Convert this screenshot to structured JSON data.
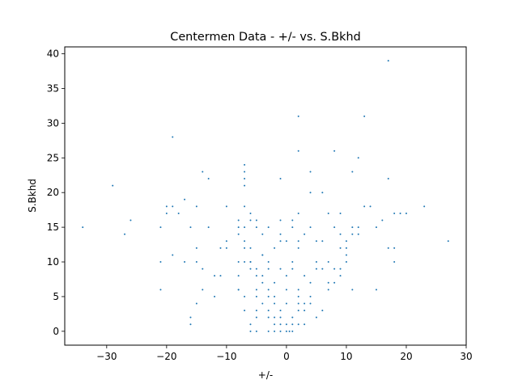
{
  "chart_data": {
    "type": "scatter",
    "title": "Centermen Data - +/- vs. S.Bkhd",
    "xlabel": "+/-",
    "ylabel": "S.Bkhd",
    "xlim": [
      -37,
      30
    ],
    "ylim": [
      -2,
      41
    ],
    "xticks": [
      -30,
      -20,
      -10,
      0,
      10,
      20,
      30
    ],
    "yticks": [
      0,
      5,
      10,
      15,
      20,
      25,
      30,
      35,
      40
    ],
    "xtick_labels": [
      "−30",
      "−20",
      "−10",
      "0",
      "10",
      "20",
      "30"
    ],
    "ytick_labels": [
      "0",
      "5",
      "10",
      "15",
      "20",
      "25",
      "30",
      "35",
      "40"
    ],
    "grid": false,
    "color": "#1f77b4",
    "series": [
      {
        "points": [
          [
            17,
            39
          ],
          [
            2,
            31
          ],
          [
            13,
            31
          ],
          [
            -19,
            28
          ],
          [
            2,
            26
          ],
          [
            8,
            26
          ],
          [
            12,
            25
          ],
          [
            -7,
            24
          ],
          [
            -14,
            23
          ],
          [
            -7,
            23
          ],
          [
            4,
            23
          ],
          [
            11,
            23
          ],
          [
            -13,
            22
          ],
          [
            -7,
            22
          ],
          [
            -1,
            22
          ],
          [
            17,
            22
          ],
          [
            -29,
            21
          ],
          [
            -7,
            21
          ],
          [
            4,
            20
          ],
          [
            6,
            20
          ],
          [
            -20,
            18
          ],
          [
            -19,
            18
          ],
          [
            -15,
            18
          ],
          [
            -10,
            18
          ],
          [
            -7,
            18
          ],
          [
            13,
            18
          ],
          [
            14,
            18
          ],
          [
            23,
            18
          ],
          [
            -20,
            17
          ],
          [
            -18,
            17
          ],
          [
            -6,
            17
          ],
          [
            2,
            17
          ],
          [
            7,
            17
          ],
          [
            9,
            17
          ],
          [
            18,
            17
          ],
          [
            19,
            17
          ],
          [
            20,
            17
          ],
          [
            -17,
            19
          ],
          [
            -26,
            16
          ],
          [
            -8,
            16
          ],
          [
            -6,
            16
          ],
          [
            -5,
            16
          ],
          [
            -1,
            16
          ],
          [
            1,
            16
          ],
          [
            16,
            16
          ],
          [
            -34,
            15
          ],
          [
            -21,
            15
          ],
          [
            -16,
            15
          ],
          [
            -13,
            15
          ],
          [
            -8,
            15
          ],
          [
            -7,
            15
          ],
          [
            -5,
            15
          ],
          [
            -3,
            15
          ],
          [
            1,
            15
          ],
          [
            4,
            15
          ],
          [
            8,
            15
          ],
          [
            11,
            15
          ],
          [
            12,
            15
          ],
          [
            15,
            15
          ],
          [
            -27,
            14
          ],
          [
            -8,
            14
          ],
          [
            -4,
            14
          ],
          [
            -1,
            14
          ],
          [
            3,
            14
          ],
          [
            9,
            14
          ],
          [
            11,
            14
          ],
          [
            12,
            14
          ],
          [
            -10,
            13
          ],
          [
            -7,
            13
          ],
          [
            -1,
            13
          ],
          [
            0,
            13
          ],
          [
            2,
            13
          ],
          [
            5,
            13
          ],
          [
            6,
            13
          ],
          [
            10,
            13
          ],
          [
            27,
            13
          ],
          [
            -15,
            12
          ],
          [
            -11,
            12
          ],
          [
            -10,
            12
          ],
          [
            -7,
            12
          ],
          [
            -6,
            12
          ],
          [
            -2,
            12
          ],
          [
            2,
            12
          ],
          [
            9,
            12
          ],
          [
            10,
            12
          ],
          [
            17,
            12
          ],
          [
            18,
            12
          ],
          [
            -19,
            11
          ],
          [
            -4,
            11
          ],
          [
            -4,
            11
          ],
          [
            10,
            11
          ],
          [
            -21,
            10
          ],
          [
            -17,
            10
          ],
          [
            -15,
            10
          ],
          [
            -8,
            10
          ],
          [
            -7,
            10
          ],
          [
            -6,
            10
          ],
          [
            -6,
            10
          ],
          [
            -3,
            10
          ],
          [
            1,
            10
          ],
          [
            5,
            10
          ],
          [
            7,
            10
          ],
          [
            10,
            10
          ],
          [
            18,
            10
          ],
          [
            -14,
            9
          ],
          [
            -6,
            9
          ],
          [
            -5,
            9
          ],
          [
            -3,
            9
          ],
          [
            -1,
            9
          ],
          [
            1,
            9
          ],
          [
            5,
            9
          ],
          [
            6,
            9
          ],
          [
            8,
            9
          ],
          [
            9,
            9
          ],
          [
            -12,
            8
          ],
          [
            -11,
            8
          ],
          [
            -8,
            8
          ],
          [
            -5,
            8
          ],
          [
            -4,
            8
          ],
          [
            0,
            8
          ],
          [
            3,
            8
          ],
          [
            9,
            8
          ],
          [
            -4,
            7
          ],
          [
            -2,
            7
          ],
          [
            4,
            7
          ],
          [
            7,
            7
          ],
          [
            8,
            7
          ],
          [
            -21,
            6
          ],
          [
            -14,
            6
          ],
          [
            -8,
            6
          ],
          [
            -8,
            6
          ],
          [
            -5,
            6
          ],
          [
            -3,
            6
          ],
          [
            0,
            6
          ],
          [
            2,
            6
          ],
          [
            7,
            6
          ],
          [
            11,
            6
          ],
          [
            15,
            6
          ],
          [
            -12,
            5
          ],
          [
            -7,
            5
          ],
          [
            -5,
            5
          ],
          [
            -3,
            5
          ],
          [
            -2,
            5
          ],
          [
            2,
            5
          ],
          [
            4,
            5
          ],
          [
            -15,
            4
          ],
          [
            -4,
            4
          ],
          [
            -2,
            4
          ],
          [
            0,
            4
          ],
          [
            2,
            4
          ],
          [
            3,
            4
          ],
          [
            4,
            4
          ],
          [
            -7,
            3
          ],
          [
            -5,
            3
          ],
          [
            -3,
            3
          ],
          [
            -1,
            3
          ],
          [
            2,
            3
          ],
          [
            3,
            3
          ],
          [
            6,
            3
          ],
          [
            -16,
            2
          ],
          [
            -5,
            2
          ],
          [
            -3,
            2
          ],
          [
            -2,
            2
          ],
          [
            -1,
            2
          ],
          [
            1,
            2
          ],
          [
            5,
            2
          ],
          [
            -16,
            1
          ],
          [
            -6,
            1
          ],
          [
            -2,
            1
          ],
          [
            -1,
            1
          ],
          [
            0,
            1
          ],
          [
            1,
            1
          ],
          [
            2,
            1
          ],
          [
            3,
            1
          ],
          [
            -6,
            0
          ],
          [
            -5,
            0
          ],
          [
            -3,
            0
          ],
          [
            -2,
            0
          ],
          [
            -1,
            0
          ],
          [
            0,
            0
          ],
          [
            0.5,
            0
          ],
          [
            1,
            0
          ]
        ]
      }
    ]
  }
}
